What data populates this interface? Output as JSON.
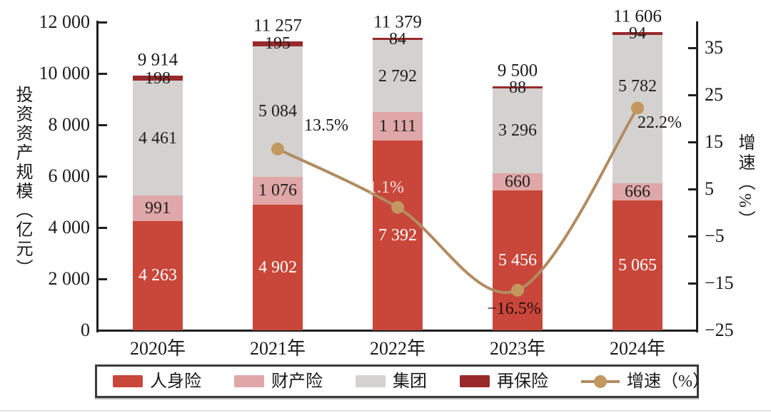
{
  "chart_data": {
    "type": "bar",
    "subtype": "stacked-bar-with-line-overlay",
    "title": "",
    "grid": false,
    "legend_position": "bottom",
    "categories": [
      "2020年",
      "2021年",
      "2022年",
      "2023年",
      "2024年"
    ],
    "left_axis": {
      "label": "投资资产规模（亿元）",
      "range": [
        0,
        12000
      ],
      "ticks": [
        {
          "v": 12000,
          "label": "12 000"
        },
        {
          "v": 10000,
          "label": "10 000"
        },
        {
          "v": 8000,
          "label": "8 000"
        },
        {
          "v": 6000,
          "label": "6 000"
        },
        {
          "v": 4000,
          "label": "4 000"
        },
        {
          "v": 2000,
          "label": "2 000"
        },
        {
          "v": 0,
          "label": "0"
        }
      ]
    },
    "right_axis": {
      "label": "增速（%）",
      "range": [
        -25,
        35
      ],
      "ticks": [
        {
          "v": 35,
          "label": "35"
        },
        {
          "v": 25,
          "label": "25"
        },
        {
          "v": 15,
          "label": "15"
        },
        {
          "v": 5,
          "label": "5"
        },
        {
          "v": -5,
          "label": "−5"
        },
        {
          "v": -15,
          "label": "−15"
        },
        {
          "v": -25,
          "label": "−25"
        }
      ]
    },
    "series": [
      {
        "name": "人身险",
        "color": "#c8473a",
        "label_color": "#ffffff",
        "values": [
          4263,
          4902,
          7392,
          5456,
          5065
        ],
        "labels": [
          "4 263",
          "4 902",
          "7 392",
          "5 456",
          "5 065"
        ]
      },
      {
        "name": "财产险",
        "color": "#dfa7a7",
        "label_color": "#1f1f1f",
        "values": [
          991,
          1076,
          1111,
          660,
          666
        ],
        "labels": [
          "991",
          "1 076",
          "1 111",
          "660",
          "666"
        ]
      },
      {
        "name": "集团",
        "color": "#d4d2d0",
        "label_color": "#1f1f1f",
        "values": [
          4461,
          5084,
          2792,
          3296,
          5782
        ],
        "labels": [
          "4 461",
          "5 084",
          "2 792",
          "3 296",
          "5 782"
        ]
      },
      {
        "name": "再保险",
        "color": "#992a2c",
        "label_color": "#1f1f1f",
        "values": [
          198,
          195,
          84,
          88,
          94
        ],
        "labels": [
          "198",
          "195",
          "84",
          "88",
          "94"
        ]
      }
    ],
    "totals": {
      "values": [
        9914,
        11257,
        11379,
        9500,
        11606
      ],
      "labels": [
        "9 914",
        "11 257",
        "11 379",
        "9 500",
        "11 606"
      ]
    },
    "line_series": {
      "name": "增速（%）",
      "color": "#b28c60",
      "dot_color": "#c2985f",
      "points": [
        {
          "category": "2021年",
          "value": 13.5,
          "label": "13.5%",
          "label_color": "#1a1a1a"
        },
        {
          "category": "2022年",
          "value": 1.1,
          "label": "1.1%",
          "label_color": "#f6e0dc"
        },
        {
          "category": "2023年",
          "value": -16.5,
          "label": "−16.5%",
          "label_color": "#240e0e"
        },
        {
          "category": "2024年",
          "value": 22.2,
          "label": "22.2%",
          "label_color": "#1a1a1a"
        }
      ]
    },
    "legend": [
      {
        "label": "人身险",
        "type": "swatch",
        "color": "#c8473a"
      },
      {
        "label": "财产险",
        "type": "swatch",
        "color": "#dfa7a7"
      },
      {
        "label": "集团",
        "type": "swatch",
        "color": "#d4d2d0"
      },
      {
        "label": "再保险",
        "type": "swatch",
        "color": "#992a2c"
      },
      {
        "label": "增速（%）",
        "type": "line",
        "color": "#b28c60",
        "dot_color": "#c2985f"
      }
    ]
  }
}
